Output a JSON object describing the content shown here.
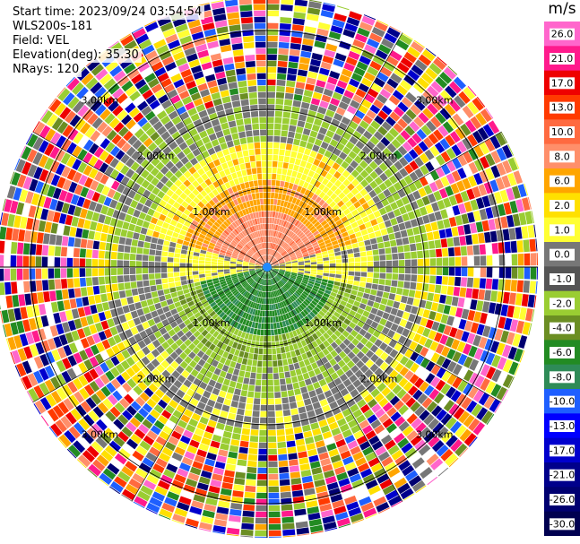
{
  "info": {
    "start_time": "Start time: 2023/09/24 03:54:54",
    "instrument": "WLS200s-181",
    "field": "Field: VEL",
    "elevation": "Elevation(deg): 35.30",
    "nrays": "NRays: 120"
  },
  "chart_data": {
    "type": "heatmap",
    "projection": "polar (PPI)",
    "field": "VEL",
    "units": "m/s",
    "n_rays": 120,
    "elevation_deg": 35.3,
    "range_rings_km": [
      1.0,
      2.0,
      3.0
    ],
    "range_ring_labels": [
      "1.00km",
      "2.00km",
      "3.00km"
    ],
    "colorbar": {
      "label": "m/s",
      "ticks": [
        "26.0",
        "21.0",
        "17.0",
        "13.0",
        "10.0",
        "8.0",
        "6.0",
        "2.0",
        "1.0",
        "0.0",
        "-1.0",
        "-2.0",
        "-4.0",
        "-6.0",
        "-8.0",
        "-10.0",
        "-13.0",
        "-17.0",
        "-21.0",
        "-26.0",
        "-30.0"
      ],
      "colors": [
        "#ff66cc",
        "#ff1a8c",
        "#ee0000",
        "#ff3a00",
        "#ff6a40",
        "#ff8f6a",
        "#ffa500",
        "#ffe000",
        "#ffff33",
        "#777777",
        "#555555",
        "#9acd32",
        "#6b8e23",
        "#228b22",
        "#2e8b57",
        "#1e5fff",
        "#0000ff",
        "#0000cd",
        "#00008b",
        "#000070",
        "#000050"
      ]
    },
    "approx_velocity_pattern_m_s": {
      "north_core": 8.0,
      "south_core": -6.0,
      "east_west_bands": 2.0,
      "outer_ranges": "noise"
    }
  }
}
